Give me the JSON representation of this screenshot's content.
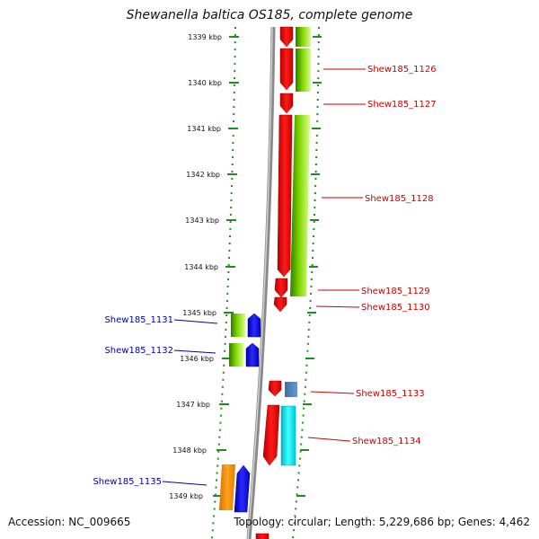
{
  "title": "Shewanella baltica OS185, complete genome",
  "footer": {
    "accession": "Accession: NC_009665",
    "topology": "Topology: circular; Length: 5,229,686 bp; Genes: 4,462"
  },
  "scale_labels": [
    "1339 kbp",
    "1340 kbp",
    "1341 kbp",
    "1342 kbp",
    "1343 kbp",
    "1344 kbp",
    "1345 kbp",
    "1346 kbp",
    "1347 kbp",
    "1348 kbp",
    "1349 kbp"
  ],
  "genes_right": [
    "Shew185_1126",
    "Shew185_1127",
    "Shew185_1128",
    "Shew185_1129",
    "Shew185_1130",
    "Shew185_1133",
    "Shew185_1134"
  ],
  "genes_left": [
    "Shew185_1131",
    "Shew185_1132",
    "Shew185_1135"
  ],
  "colors": {
    "right_label": "#cc0000",
    "left_label": "#0000aa",
    "cds_red": "#ee0000",
    "blast_green": "#66cc00",
    "cds_blue": "#0000ee",
    "cds_orange": "#ff9900",
    "cds_cyan": "#00e5ee",
    "cds_steel": "#4a7fb8",
    "tick_green": "#228b22",
    "backbone": "#8a8a8a"
  }
}
